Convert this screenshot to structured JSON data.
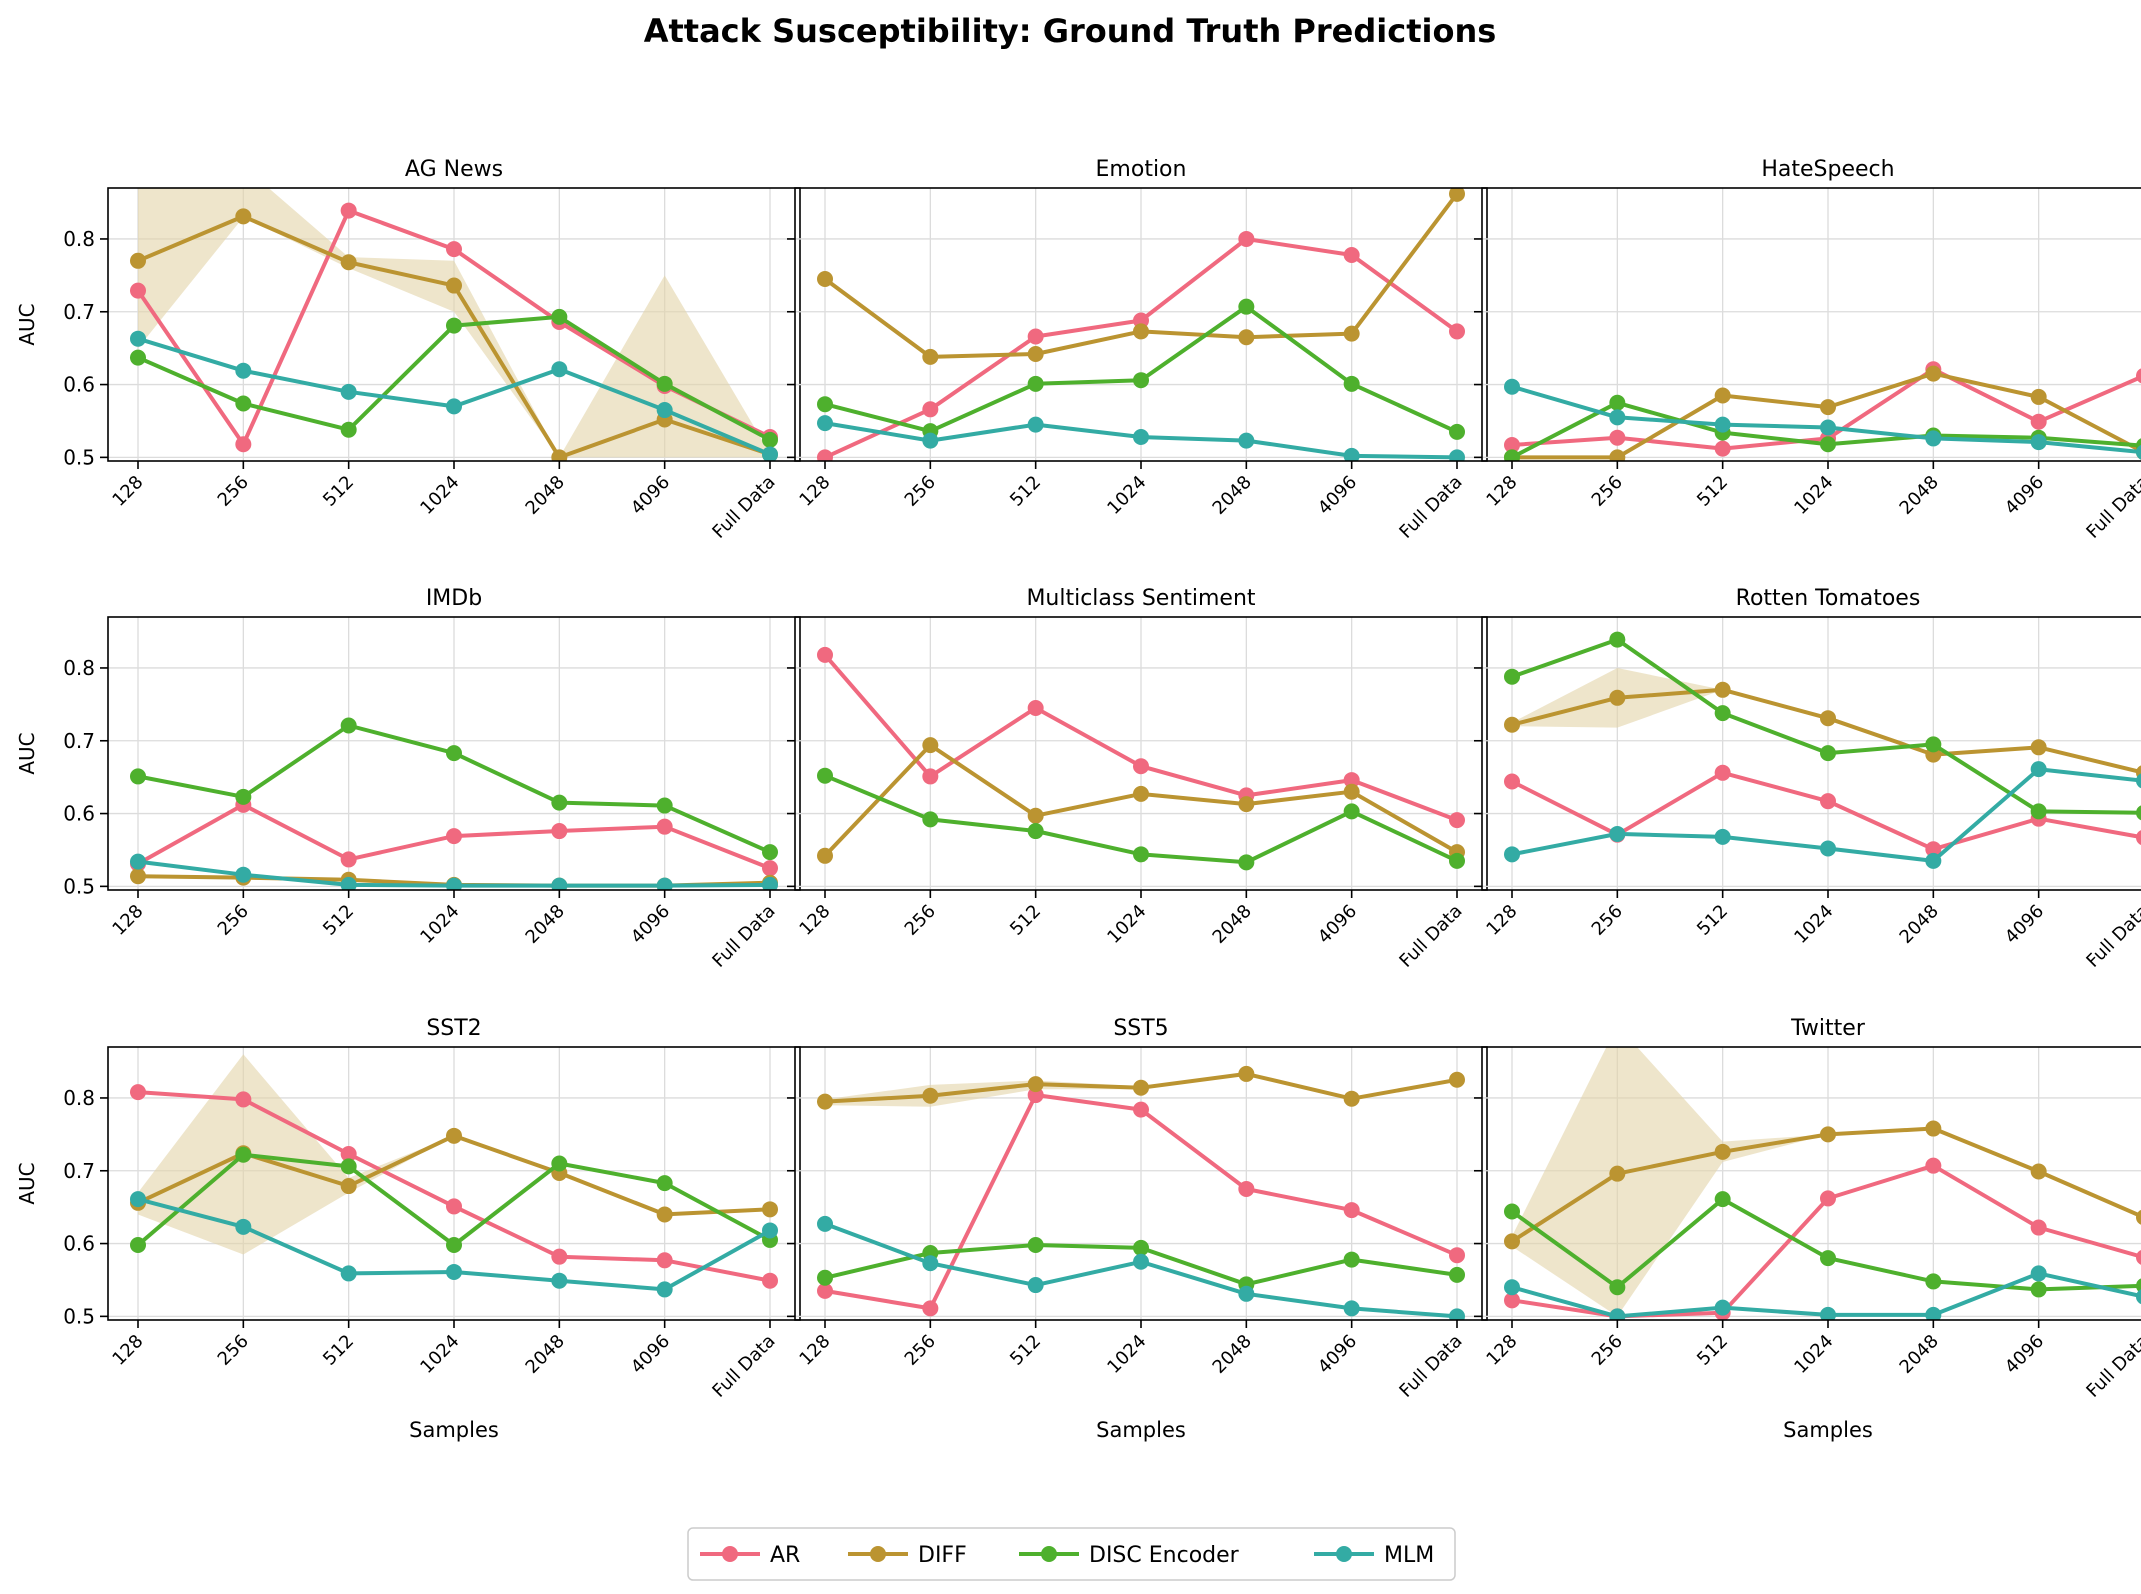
{
  "figure_title": "Attack Susceptibility: Ground Truth Predictions",
  "colors": {
    "AR": "#f0697f",
    "DIFF": "#bb9431",
    "DISC Encoder": "#4eb02d",
    "MLM": "#33aba4",
    "band": "#e3d3a8",
    "grid": "#dcdcdc",
    "axis": "#000000"
  },
  "legend": [
    "AR",
    "DIFF",
    "DISC Encoder",
    "MLM"
  ],
  "chart_data": [
    {
      "type": "line",
      "title": "AG News",
      "xlabel": "",
      "ylabel": "AUC",
      "categories": [
        "128",
        "256",
        "512",
        "1024",
        "2048",
        "4096",
        "Full Data"
      ],
      "ylim": [
        0.495,
        0.87
      ],
      "yticks": [
        0.5,
        0.6,
        0.7,
        0.8
      ],
      "grid": true,
      "legend": "bottom-center",
      "series": [
        {
          "name": "AR",
          "values": [
            0.729,
            0.518,
            0.839,
            0.786,
            0.686,
            0.598,
            0.528
          ]
        },
        {
          "name": "DIFF",
          "values": [
            0.77,
            0.831,
            0.768,
            0.736,
            0.5,
            0.552,
            0.504
          ]
        },
        {
          "name": "DISC Encoder",
          "values": [
            0.637,
            0.574,
            0.538,
            0.681,
            0.693,
            0.601,
            0.524
          ]
        },
        {
          "name": "MLM",
          "values": [
            0.663,
            0.619,
            0.59,
            0.57,
            0.621,
            0.565,
            0.504
          ]
        }
      ],
      "band": {
        "series": "DIFF",
        "upper": [
          0.9,
          0.9,
          0.775,
          0.77,
          0.5,
          0.75,
          0.505
        ],
        "lower": [
          0.65,
          0.83,
          0.76,
          0.7,
          0.5,
          0.5,
          0.5
        ]
      }
    },
    {
      "type": "line",
      "title": "Emotion",
      "xlabel": "",
      "ylabel": "",
      "categories": [
        "128",
        "256",
        "512",
        "1024",
        "2048",
        "4096",
        "Full Data"
      ],
      "ylim": [
        0.495,
        0.87
      ],
      "yticks": [
        0.5,
        0.6,
        0.7,
        0.8
      ],
      "grid": true,
      "series": [
        {
          "name": "AR",
          "values": [
            0.5,
            0.566,
            0.666,
            0.688,
            0.8,
            0.778,
            0.673
          ]
        },
        {
          "name": "DIFF",
          "values": [
            0.745,
            0.638,
            0.642,
            0.673,
            0.665,
            0.67,
            0.862
          ]
        },
        {
          "name": "DISC Encoder",
          "values": [
            0.573,
            0.536,
            0.601,
            0.606,
            0.707,
            0.601,
            0.535
          ]
        },
        {
          "name": "MLM",
          "values": [
            0.547,
            0.523,
            0.545,
            0.528,
            0.523,
            0.502,
            0.5
          ]
        }
      ]
    },
    {
      "type": "line",
      "title": "HateSpeech",
      "xlabel": "",
      "ylabel": "",
      "categories": [
        "128",
        "256",
        "512",
        "1024",
        "2048",
        "4096",
        "Full Data"
      ],
      "ylim": [
        0.495,
        0.87
      ],
      "yticks": [
        0.5,
        0.6,
        0.7,
        0.8
      ],
      "grid": true,
      "series": [
        {
          "name": "AR",
          "values": [
            0.517,
            0.527,
            0.512,
            0.526,
            0.621,
            0.549,
            0.612
          ]
        },
        {
          "name": "DIFF",
          "values": [
            0.5,
            0.5,
            0.585,
            0.569,
            0.615,
            0.583,
            0.507
          ]
        },
        {
          "name": "DISC Encoder",
          "values": [
            0.5,
            0.575,
            0.534,
            0.518,
            0.53,
            0.527,
            0.516
          ]
        },
        {
          "name": "MLM",
          "values": [
            0.597,
            0.555,
            0.545,
            0.541,
            0.526,
            0.521,
            0.507
          ]
        }
      ]
    },
    {
      "type": "line",
      "title": "IMDb",
      "xlabel": "",
      "ylabel": "AUC",
      "categories": [
        "128",
        "256",
        "512",
        "1024",
        "2048",
        "4096",
        "Full Data"
      ],
      "ylim": [
        0.495,
        0.87
      ],
      "yticks": [
        0.5,
        0.6,
        0.7,
        0.8
      ],
      "grid": true,
      "series": [
        {
          "name": "AR",
          "values": [
            0.531,
            0.612,
            0.537,
            0.569,
            0.576,
            0.582,
            0.525
          ]
        },
        {
          "name": "DIFF",
          "values": [
            0.514,
            0.512,
            0.509,
            0.502,
            0.501,
            0.501,
            0.505
          ]
        },
        {
          "name": "DISC Encoder",
          "values": [
            0.651,
            0.623,
            0.721,
            0.683,
            0.615,
            0.611,
            0.547
          ]
        },
        {
          "name": "MLM",
          "values": [
            0.534,
            0.516,
            0.502,
            0.501,
            0.501,
            0.501,
            0.502
          ]
        }
      ]
    },
    {
      "type": "line",
      "title": "Multiclass Sentiment",
      "xlabel": "",
      "ylabel": "",
      "categories": [
        "128",
        "256",
        "512",
        "1024",
        "2048",
        "4096",
        "Full Data"
      ],
      "ylim": [
        0.495,
        0.87
      ],
      "yticks": [
        0.5,
        0.6,
        0.7,
        0.8
      ],
      "grid": true,
      "series": [
        {
          "name": "AR",
          "values": [
            0.818,
            0.651,
            0.745,
            0.665,
            0.625,
            0.646,
            0.591
          ]
        },
        {
          "name": "DIFF",
          "values": [
            0.542,
            0.694,
            0.597,
            0.627,
            0.613,
            0.63,
            0.547
          ]
        },
        {
          "name": "DISC Encoder",
          "values": [
            0.652,
            0.592,
            0.576,
            0.544,
            0.533,
            0.603,
            0.535
          ]
        }
      ]
    },
    {
      "type": "line",
      "title": "Rotten Tomatoes",
      "xlabel": "",
      "ylabel": "",
      "categories": [
        "128",
        "256",
        "512",
        "1024",
        "2048",
        "4096",
        "Full Data"
      ],
      "ylim": [
        0.495,
        0.87
      ],
      "yticks": [
        0.5,
        0.6,
        0.7,
        0.8
      ],
      "grid": true,
      "series": [
        {
          "name": "AR",
          "values": [
            0.644,
            0.571,
            0.656,
            0.617,
            0.551,
            0.593,
            0.567
          ]
        },
        {
          "name": "DIFF",
          "values": [
            0.722,
            0.759,
            0.77,
            0.731,
            0.681,
            0.691,
            0.656
          ]
        },
        {
          "name": "DISC Encoder",
          "values": [
            0.788,
            0.839,
            0.738,
            0.683,
            0.695,
            0.603,
            0.601
          ]
        },
        {
          "name": "MLM",
          "values": [
            0.544,
            0.572,
            0.568,
            0.552,
            0.535,
            0.661,
            0.645
          ]
        }
      ],
      "band": {
        "series": "DIFF",
        "upper": [
          0.725,
          0.8,
          0.77,
          0.731,
          0.681,
          0.691,
          0.656
        ],
        "lower": [
          0.72,
          0.718,
          0.77,
          0.731,
          0.681,
          0.691,
          0.656
        ]
      }
    },
    {
      "type": "line",
      "title": "SST2",
      "xlabel": "Samples",
      "ylabel": "AUC",
      "categories": [
        "128",
        "256",
        "512",
        "1024",
        "2048",
        "4096",
        "Full Data"
      ],
      "ylim": [
        0.495,
        0.87
      ],
      "yticks": [
        0.5,
        0.6,
        0.7,
        0.8
      ],
      "grid": true,
      "series": [
        {
          "name": "AR",
          "values": [
            0.808,
            0.798,
            0.723,
            0.651,
            0.582,
            0.577,
            0.549
          ]
        },
        {
          "name": "DIFF",
          "values": [
            0.656,
            0.724,
            0.679,
            0.748,
            0.697,
            0.64,
            0.647
          ]
        },
        {
          "name": "DISC Encoder",
          "values": [
            0.598,
            0.722,
            0.706,
            0.598,
            0.71,
            0.683,
            0.605
          ]
        },
        {
          "name": "MLM",
          "values": [
            0.661,
            0.623,
            0.559,
            0.561,
            0.549,
            0.537,
            0.618
          ]
        }
      ],
      "band": {
        "series": "DIFF",
        "upper": [
          0.67,
          0.86,
          0.69,
          0.748,
          0.697,
          0.64,
          0.647
        ],
        "lower": [
          0.64,
          0.585,
          0.67,
          0.748,
          0.697,
          0.64,
          0.647
        ]
      }
    },
    {
      "type": "line",
      "title": "SST5",
      "xlabel": "Samples",
      "ylabel": "",
      "categories": [
        "128",
        "256",
        "512",
        "1024",
        "2048",
        "4096",
        "Full Data"
      ],
      "ylim": [
        0.495,
        0.87
      ],
      "yticks": [
        0.5,
        0.6,
        0.7,
        0.8
      ],
      "grid": true,
      "series": [
        {
          "name": "AR",
          "values": [
            0.535,
            0.511,
            0.804,
            0.784,
            0.675,
            0.646,
            0.584
          ]
        },
        {
          "name": "DIFF",
          "values": [
            0.795,
            0.803,
            0.819,
            0.814,
            0.833,
            0.799,
            0.825
          ]
        },
        {
          "name": "DISC Encoder",
          "values": [
            0.553,
            0.587,
            0.598,
            0.594,
            0.544,
            0.578,
            0.557
          ]
        },
        {
          "name": "MLM",
          "values": [
            0.627,
            0.573,
            0.543,
            0.575,
            0.531,
            0.511,
            0.5
          ]
        }
      ],
      "band": {
        "series": "DIFF",
        "upper": [
          0.798,
          0.818,
          0.824,
          0.816,
          0.835,
          0.8,
          0.826
        ],
        "lower": [
          0.79,
          0.788,
          0.812,
          0.812,
          0.831,
          0.798,
          0.824
        ]
      }
    },
    {
      "type": "line",
      "title": "Twitter",
      "xlabel": "Samples",
      "ylabel": "",
      "categories": [
        "128",
        "256",
        "512",
        "1024",
        "2048",
        "4096",
        "Full Data"
      ],
      "ylim": [
        0.495,
        0.87
      ],
      "yticks": [
        0.5,
        0.6,
        0.7,
        0.8
      ],
      "grid": true,
      "series": [
        {
          "name": "AR",
          "values": [
            0.522,
            0.5,
            0.505,
            0.662,
            0.707,
            0.622,
            0.581
          ]
        },
        {
          "name": "DIFF",
          "values": [
            0.603,
            0.696,
            0.726,
            0.75,
            0.758,
            0.699,
            0.636
          ]
        },
        {
          "name": "DISC Encoder",
          "values": [
            0.644,
            0.54,
            0.661,
            0.58,
            0.548,
            0.537,
            0.542
          ]
        },
        {
          "name": "MLM",
          "values": [
            0.54,
            0.5,
            0.512,
            0.502,
            0.502,
            0.559,
            0.527
          ]
        }
      ],
      "band": {
        "series": "DIFF",
        "upper": [
          0.61,
          0.9,
          0.74,
          0.75,
          0.758,
          0.699,
          0.636
        ],
        "lower": [
          0.596,
          0.5,
          0.712,
          0.75,
          0.758,
          0.699,
          0.636
        ]
      }
    }
  ]
}
